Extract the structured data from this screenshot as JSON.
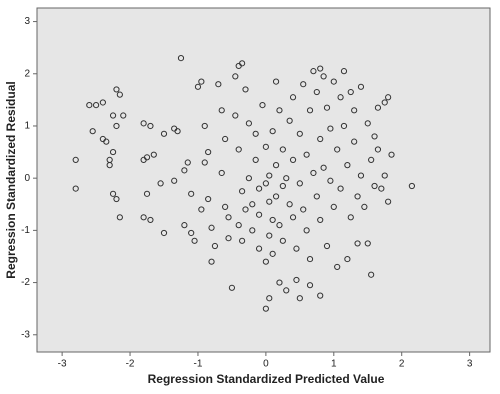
{
  "chart_data": {
    "type": "scatter",
    "xlabel": "Regression Standardized Predicted Value",
    "ylabel": "Regression Standardized Residual",
    "xlim": [
      -3.37,
      3.3
    ],
    "ylim": [
      -3.33,
      3.26
    ],
    "xticks": [
      -3,
      -2,
      -1,
      0,
      1,
      2,
      3
    ],
    "yticks": [
      -3,
      -2,
      -1,
      0,
      1,
      2,
      3
    ],
    "color": "#333333",
    "background": "#e6e6e6",
    "x": [
      -2.8,
      -2.8,
      -2.6,
      -2.5,
      -2.4,
      -2.55,
      -2.4,
      -2.35,
      -2.25,
      -2.2,
      -2.15,
      -2.2,
      -2.25,
      -2.3,
      -2.3,
      -2.25,
      -2.2,
      -2.15,
      -2.1,
      -1.8,
      -1.7,
      -1.8,
      -1.75,
      -1.65,
      -1.75,
      -1.8,
      -1.7,
      -1.5,
      -1.55,
      -1.5,
      -1.35,
      -1.3,
      -1.35,
      -1.25,
      -1.15,
      -1.2,
      -1.1,
      -1.2,
      -1.1,
      -1.05,
      -1.0,
      -0.95,
      -0.9,
      -0.85,
      -0.9,
      -0.95,
      -0.85,
      -0.8,
      -0.75,
      -0.8,
      -0.7,
      -0.65,
      -0.6,
      -0.65,
      -0.6,
      -0.55,
      -0.55,
      -0.5,
      -0.45,
      -0.4,
      -0.35,
      -0.45,
      -0.4,
      -0.35,
      -0.4,
      -0.35,
      -0.3,
      -0.25,
      -0.3,
      -0.25,
      -0.2,
      -0.2,
      -0.15,
      -0.15,
      -0.1,
      -0.1,
      -0.1,
      -0.05,
      0.0,
      0.0,
      0.0,
      0.05,
      0.05,
      0.05,
      0.0,
      0.05,
      0.1,
      0.1,
      0.1,
      0.15,
      0.15,
      0.15,
      0.2,
      0.2,
      0.2,
      0.25,
      0.25,
      0.25,
      0.3,
      0.3,
      0.35,
      0.35,
      0.4,
      0.4,
      0.4,
      0.45,
      0.45,
      0.5,
      0.5,
      0.5,
      0.55,
      0.55,
      0.6,
      0.6,
      0.65,
      0.65,
      0.65,
      0.7,
      0.7,
      0.75,
      0.75,
      0.8,
      0.8,
      0.8,
      0.8,
      0.85,
      0.85,
      0.9,
      0.9,
      0.95,
      0.95,
      1.0,
      1.0,
      1.05,
      1.05,
      1.1,
      1.1,
      1.15,
      1.15,
      1.2,
      1.2,
      1.25,
      1.25,
      1.3,
      1.3,
      1.35,
      1.35,
      1.4,
      1.4,
      1.45,
      1.5,
      1.5,
      1.55,
      1.55,
      1.6,
      1.6,
      1.65,
      1.65,
      1.7,
      1.75,
      1.75,
      1.8,
      1.85,
      1.8,
      2.15
    ],
    "values": [
      0.35,
      -0.2,
      1.4,
      1.4,
      1.45,
      0.9,
      0.75,
      0.7,
      1.2,
      1.7,
      1.6,
      1.0,
      0.5,
      0.35,
      0.25,
      -0.3,
      -0.4,
      -0.75,
      1.2,
      1.05,
      1.0,
      0.35,
      0.4,
      0.45,
      -0.3,
      -0.75,
      -0.8,
      -1.05,
      -0.1,
      0.85,
      0.95,
      0.9,
      -0.05,
      2.3,
      0.3,
      0.15,
      -0.3,
      -0.9,
      -1.05,
      -1.2,
      1.75,
      1.85,
      1.0,
      0.5,
      0.3,
      -0.6,
      -0.4,
      -0.95,
      -1.3,
      -1.6,
      1.8,
      1.3,
      0.75,
      0.1,
      -0.55,
      -0.75,
      -1.15,
      -2.1,
      1.95,
      2.15,
      2.2,
      1.2,
      0.55,
      -0.25,
      -0.9,
      -1.2,
      -0.6,
      1.05,
      1.7,
      0.0,
      -0.5,
      -1.0,
      0.85,
      0.35,
      -0.2,
      -0.7,
      -1.35,
      1.4,
      0.6,
      -0.1,
      -1.6,
      0.05,
      -0.45,
      -1.1,
      -2.5,
      -2.3,
      0.9,
      -0.8,
      -1.45,
      1.85,
      0.25,
      -0.35,
      1.3,
      -0.9,
      -2.0,
      0.55,
      -0.15,
      -1.2,
      -2.15,
      0.0,
      1.1,
      -0.5,
      1.55,
      0.35,
      -0.75,
      -1.35,
      -1.95,
      0.85,
      -0.1,
      -2.3,
      1.8,
      -0.6,
      0.45,
      -1.0,
      1.3,
      -1.55,
      -2.05,
      2.05,
      0.1,
      1.65,
      -0.35,
      2.1,
      0.75,
      -0.8,
      -2.25,
      1.95,
      0.2,
      1.35,
      -1.3,
      -0.05,
      0.95,
      1.85,
      -0.55,
      -1.7,
      0.55,
      1.55,
      -0.2,
      2.05,
      1.0,
      -1.55,
      0.25,
      1.65,
      -0.75,
      1.3,
      0.7,
      -0.35,
      -1.25,
      1.75,
      0.05,
      -0.55,
      1.05,
      -1.25,
      0.35,
      -1.85,
      0.8,
      -0.15,
      1.35,
      0.55,
      -0.2,
      1.45,
      0.05,
      1.55,
      0.45,
      -0.45,
      -0.15
    ]
  }
}
